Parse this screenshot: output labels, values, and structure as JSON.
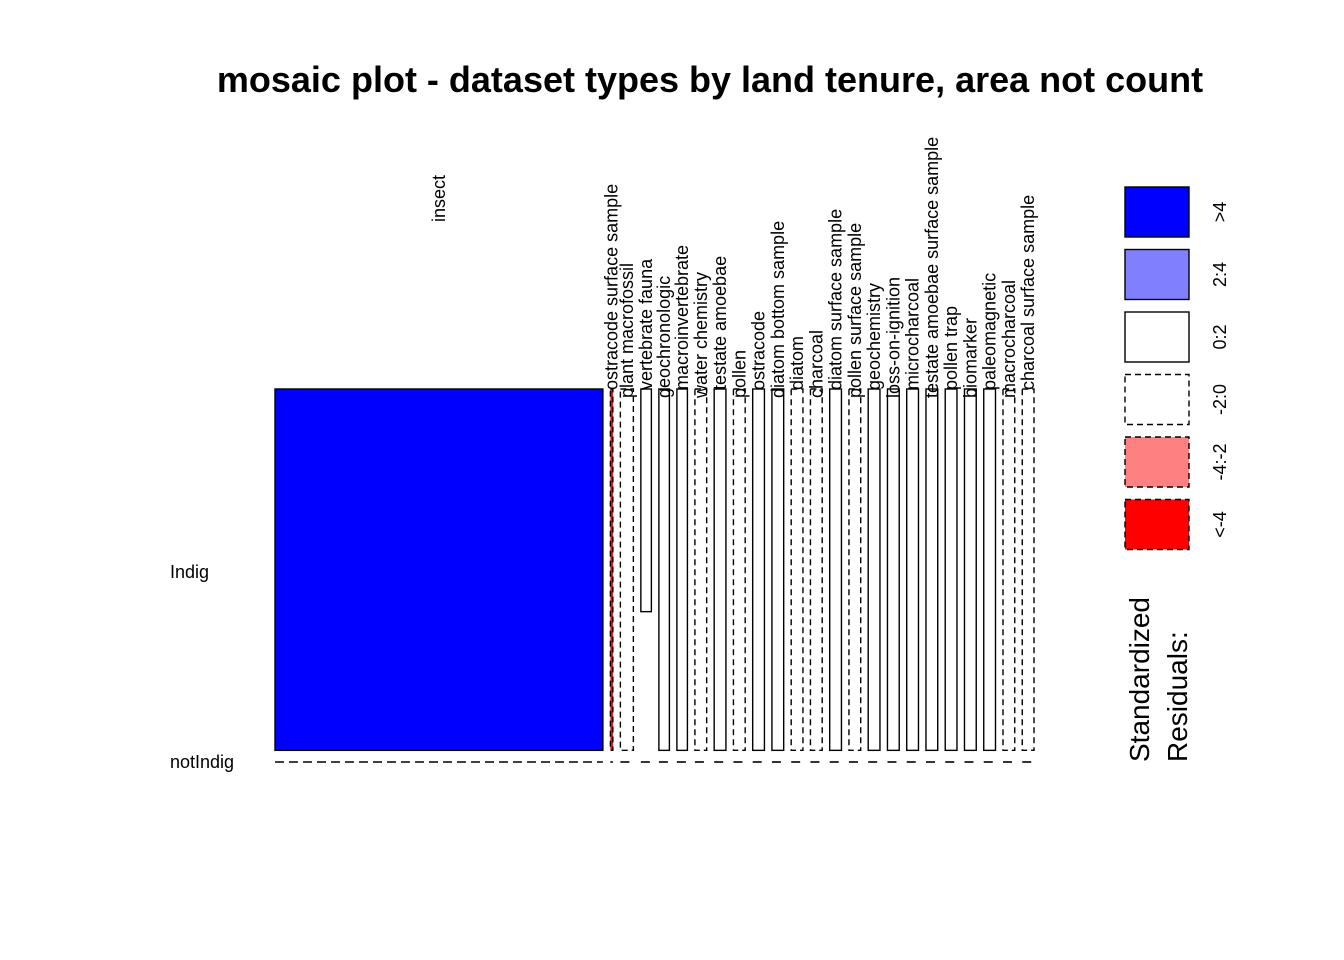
{
  "chart_data": {
    "type": "mosaic",
    "title": "mosaic plot - dataset types by land tenure, area not count",
    "rows": [
      "Indig",
      "notIndig"
    ],
    "columns": [
      {
        "name": "insect",
        "share": 0.53,
        "indig_frac": 0.99,
        "residual": "blue"
      },
      {
        "name": "ostracode surface sample",
        "share": 0.004,
        "indig_frac": 0.99,
        "residual": "red"
      },
      {
        "name": "plant macrofossil",
        "share": 0.021,
        "indig_frac": 0.99,
        "residual": "white_dash"
      },
      {
        "name": "vertebrate fauna",
        "share": 0.017,
        "indig_frac": 0.61,
        "residual": "white"
      },
      {
        "name": "geochronologic",
        "share": 0.017,
        "indig_frac": 0.99,
        "residual": "white"
      },
      {
        "name": "macroinvertebrate",
        "share": 0.017,
        "indig_frac": 0.99,
        "residual": "white"
      },
      {
        "name": "water chemistry",
        "share": 0.019,
        "indig_frac": 0.99,
        "residual": "white_dash"
      },
      {
        "name": "testate amoebae",
        "share": 0.019,
        "indig_frac": 0.99,
        "residual": "white"
      },
      {
        "name": "pollen",
        "share": 0.019,
        "indig_frac": 0.99,
        "residual": "white_dash"
      },
      {
        "name": "ostracode",
        "share": 0.019,
        "indig_frac": 0.99,
        "residual": "white"
      },
      {
        "name": "diatom bottom sample",
        "share": 0.019,
        "indig_frac": 0.99,
        "residual": "white"
      },
      {
        "name": "diatom",
        "share": 0.019,
        "indig_frac": 0.99,
        "residual": "white_dash"
      },
      {
        "name": "charcoal",
        "share": 0.019,
        "indig_frac": 0.99,
        "residual": "white_dash"
      },
      {
        "name": "diatom surface sample",
        "share": 0.019,
        "indig_frac": 0.99,
        "residual": "white"
      },
      {
        "name": "pollen surface sample",
        "share": 0.019,
        "indig_frac": 0.99,
        "residual": "white_dash"
      },
      {
        "name": "geochemistry",
        "share": 0.019,
        "indig_frac": 0.99,
        "residual": "white"
      },
      {
        "name": "loss-on-ignition",
        "share": 0.019,
        "indig_frac": 0.99,
        "residual": "white"
      },
      {
        "name": "microcharcoal",
        "share": 0.019,
        "indig_frac": 0.99,
        "residual": "white"
      },
      {
        "name": "testate amoebae surface sample",
        "share": 0.019,
        "indig_frac": 0.99,
        "residual": "white"
      },
      {
        "name": "pollen trap",
        "share": 0.019,
        "indig_frac": 0.99,
        "residual": "white"
      },
      {
        "name": "biomarker",
        "share": 0.019,
        "indig_frac": 0.99,
        "residual": "white"
      },
      {
        "name": "paleomagnetic",
        "share": 0.019,
        "indig_frac": 0.99,
        "residual": "white"
      },
      {
        "name": "macrocharcoal",
        "share": 0.019,
        "indig_frac": 0.99,
        "residual": "white_dash"
      },
      {
        "name": "charcoal surface sample",
        "share": 0.019,
        "indig_frac": 0.99,
        "residual": "white_dash"
      }
    ],
    "legend": {
      "title_line1": "Standardized",
      "title_line2": "Residuals:",
      "entries": [
        {
          "label": ">4",
          "color": "#0000ff",
          "dashed": false
        },
        {
          "label": "2:4",
          "color": "#8080ff",
          "dashed": false
        },
        {
          "label": "0:2",
          "color": "#ffffff",
          "dashed": false
        },
        {
          "label": "-2:0",
          "color": "#ffffff",
          "dashed": true
        },
        {
          "label": "-4:-2",
          "color": "#ff8080",
          "dashed": true
        },
        {
          "label": "<-4",
          "color": "#ff0000",
          "dashed": true
        }
      ]
    },
    "colors": {
      "blue": "#0000ff",
      "red": "#ff0000",
      "light_red": "#ff8080",
      "white": "#ffffff"
    }
  }
}
